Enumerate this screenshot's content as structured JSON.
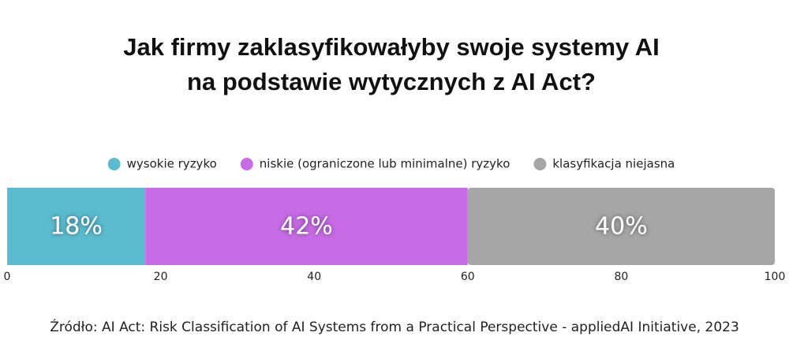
{
  "chart_data": {
    "type": "bar",
    "orientation": "horizontal",
    "stacked": true,
    "title": [
      "Jak firmy zaklasyfikowałyby swoje systemy AI",
      "na podstawie wytycznych z AI Act?"
    ],
    "series": [
      {
        "name": "wysokie ryzyko",
        "color": "#5bbccf",
        "values": [
          18
        ],
        "value_labels": [
          "18%"
        ]
      },
      {
        "name": "niskie (ograniczone lub minimalne) ryzyko",
        "color": "#c76be6",
        "values": [
          42
        ],
        "value_labels": [
          "42%"
        ]
      },
      {
        "name": "klasyfikacja niejasna",
        "color": "#a6a6a6",
        "values": [
          40
        ],
        "value_labels": [
          "40%"
        ]
      }
    ],
    "xlim": [
      0,
      100
    ],
    "xticks": [
      0,
      20,
      40,
      60,
      80,
      100
    ],
    "legend": "top",
    "source": "Źródło: AI Act: Risk Classification of AI Systems from a Practical Perspective - appliedAI Initiative, 2023"
  }
}
